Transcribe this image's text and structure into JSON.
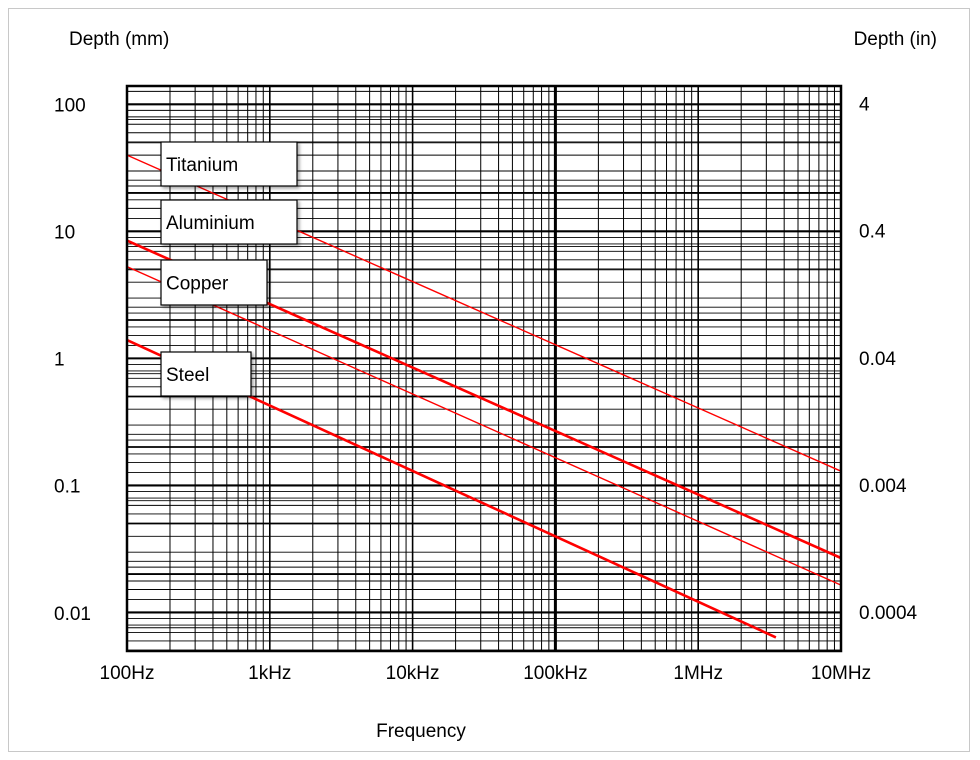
{
  "chart_data": {
    "type": "line",
    "xlabel": "Frequency",
    "ylabel": "Depth (mm)",
    "y2label": "Depth (in)",
    "x_scale": "log",
    "y_scale": "log",
    "xlim": [
      100,
      10000000
    ],
    "ylim": [
      0.005,
      140
    ],
    "grid": true,
    "x_ticks": [
      {
        "value": 100,
        "label": "100Hz"
      },
      {
        "value": 1000,
        "label": "1kHz"
      },
      {
        "value": 10000,
        "label": "10kHz"
      },
      {
        "value": 100000,
        "label": "100kHz"
      },
      {
        "value": 1000000,
        "label": "1MHz"
      },
      {
        "value": 10000000,
        "label": "10MHz"
      }
    ],
    "y_ticks": [
      {
        "value": 100,
        "label": "100"
      },
      {
        "value": 10,
        "label": "10"
      },
      {
        "value": 1,
        "label": "1"
      },
      {
        "value": 0.1,
        "label": "0.1"
      },
      {
        "value": 0.01,
        "label": "0.01"
      }
    ],
    "y2_ticks": [
      {
        "value": 4,
        "label": "4"
      },
      {
        "value": 0.4,
        "label": "0.4"
      },
      {
        "value": 0.04,
        "label": "0.04"
      },
      {
        "value": 0.004,
        "label": "0.004"
      },
      {
        "value": 0.0004,
        "label": "0.0004"
      }
    ],
    "series": [
      {
        "name": "Titanium",
        "x": [
          100,
          10000000
        ],
        "y": [
          40,
          0.13
        ],
        "color": "#ff0000"
      },
      {
        "name": "Aluminium",
        "x": [
          100,
          10000000
        ],
        "y": [
          8.5,
          0.027
        ],
        "color": "#ff0000"
      },
      {
        "name": "Copper",
        "x": [
          100,
          10000000
        ],
        "y": [
          5.3,
          0.0165
        ],
        "color": "#ff0000"
      },
      {
        "name": "Steel",
        "x": [
          100,
          3500000
        ],
        "y": [
          1.4,
          0.0064
        ],
        "color": "#ff0000"
      }
    ],
    "legend_placement": "inline-left"
  }
}
